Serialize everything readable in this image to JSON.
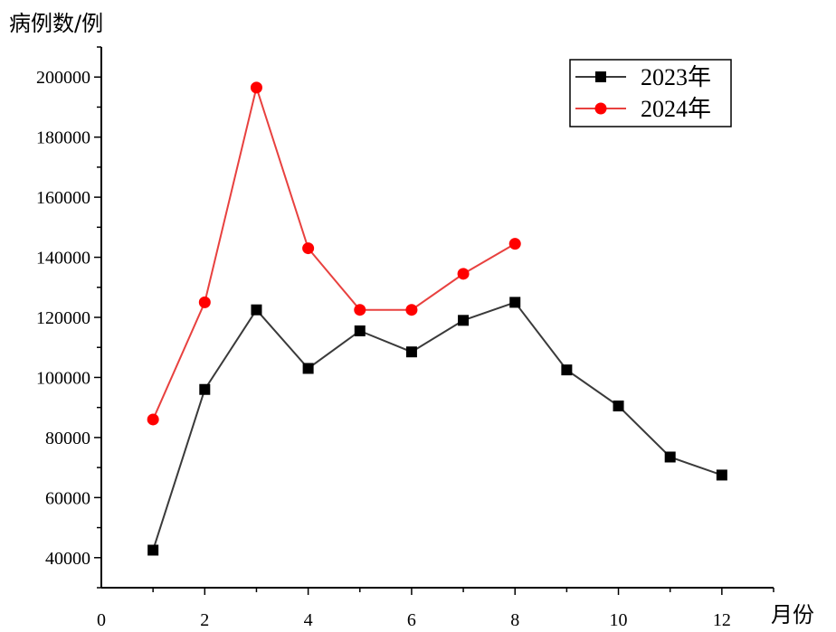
{
  "chart_data": {
    "type": "line",
    "xlabel": "月份",
    "ylabel": "病例数/例",
    "xlim": [
      0,
      13
    ],
    "ylim": [
      30000,
      210000
    ],
    "x_ticks": [
      0,
      2,
      4,
      6,
      8,
      10,
      12
    ],
    "y_ticks": [
      40000,
      60000,
      80000,
      100000,
      120000,
      140000,
      160000,
      180000,
      200000
    ],
    "legend_position": "top-right",
    "grid": false,
    "series": [
      {
        "name": "2023年",
        "color": "#3a3a3a",
        "marker": "square",
        "x": [
          1,
          2,
          3,
          4,
          5,
          6,
          7,
          8,
          9,
          10,
          11,
          12
        ],
        "values": [
          42500,
          96000,
          122500,
          103000,
          115500,
          108500,
          119000,
          125000,
          102500,
          90500,
          73500,
          67500
        ]
      },
      {
        "name": "2024年",
        "color": "#e8413f",
        "marker": "circle",
        "x": [
          1,
          2,
          3,
          4,
          5,
          6,
          7,
          8
        ],
        "values": [
          86000,
          125000,
          196500,
          143000,
          122500,
          122500,
          134500,
          144500
        ]
      }
    ]
  }
}
